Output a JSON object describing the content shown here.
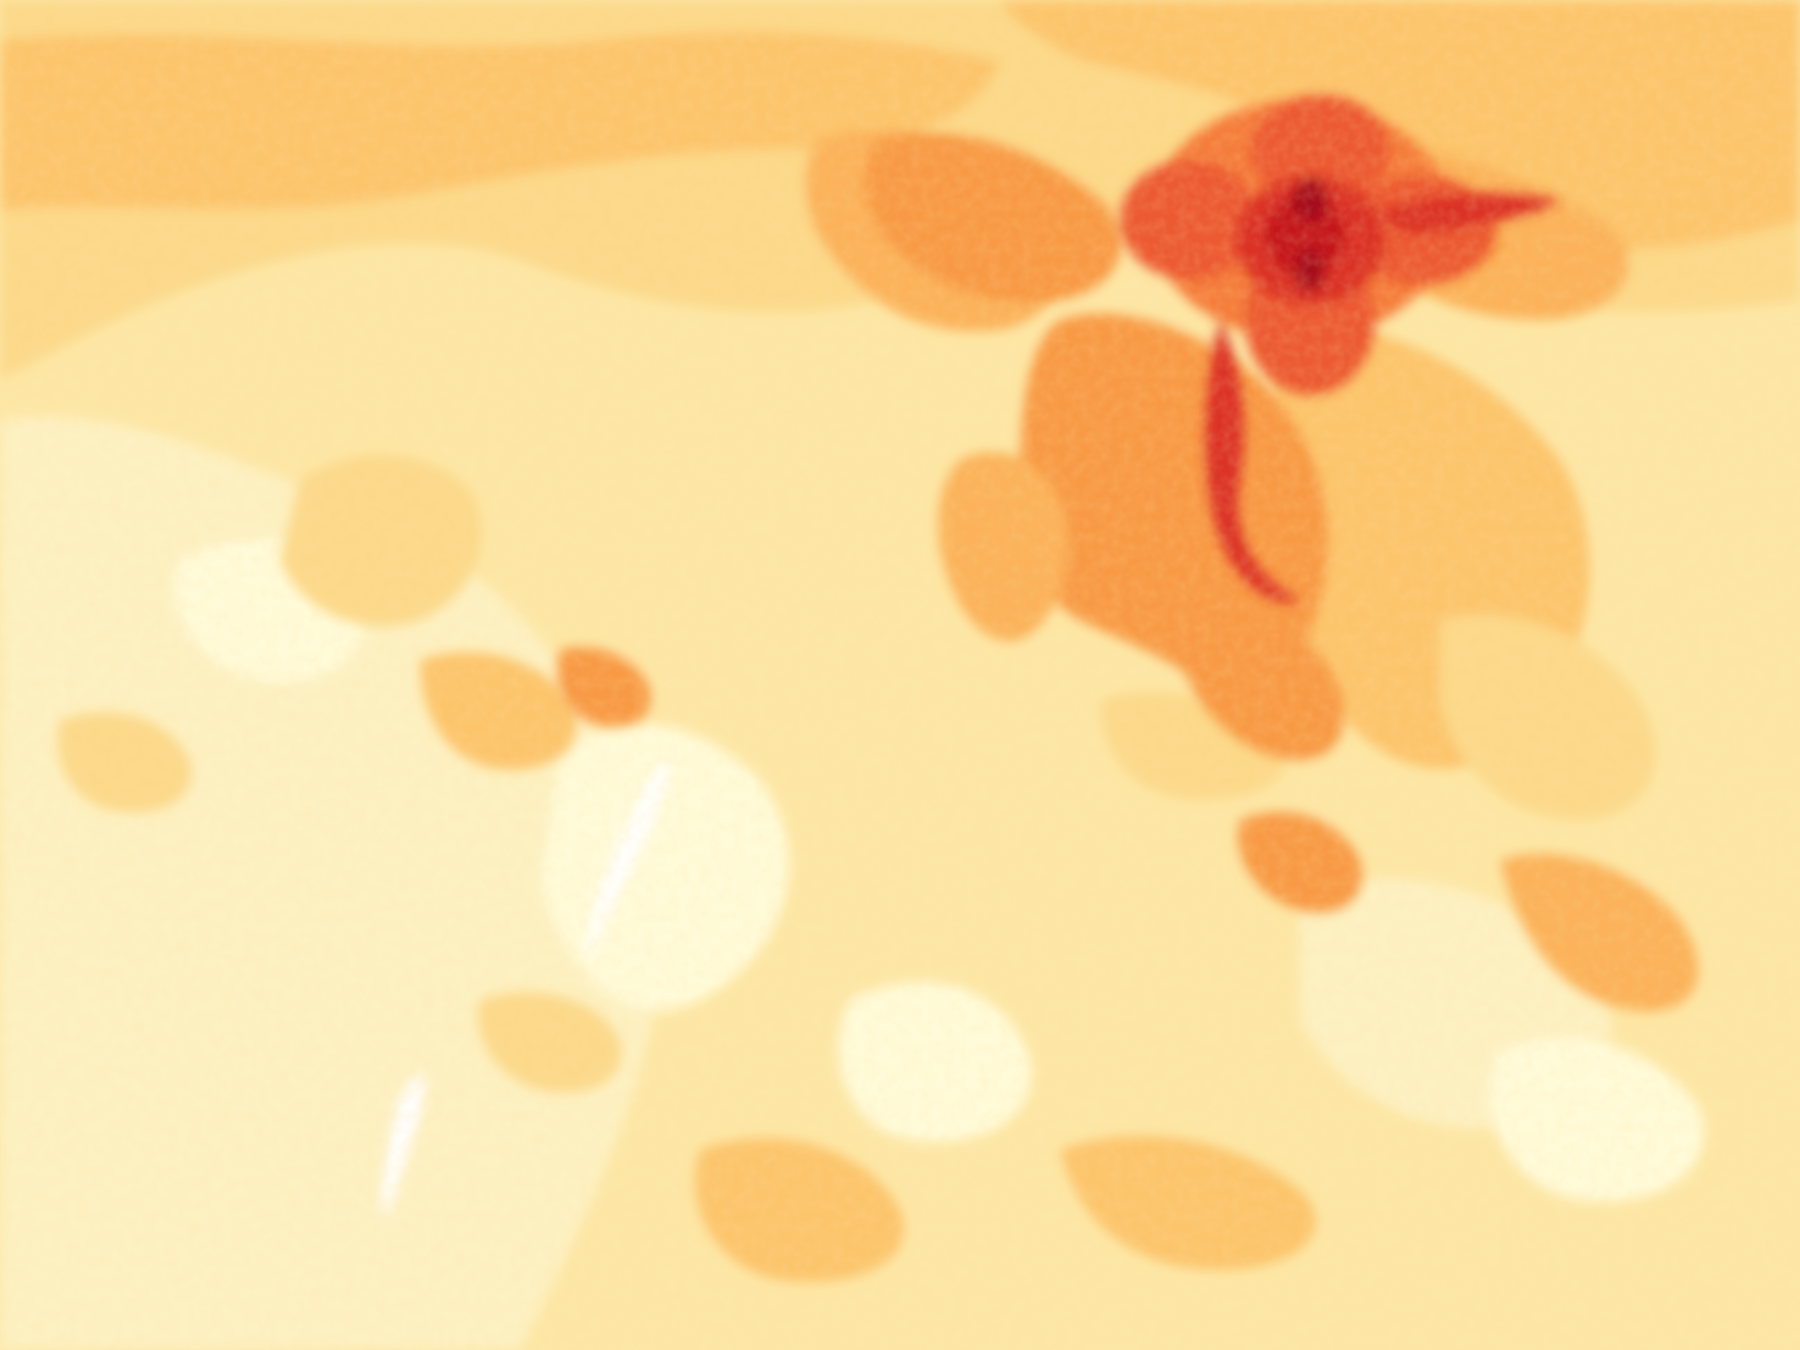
{
  "map": {
    "kind": "raster-heatmap",
    "color_ramp": [
      "#fffbd9",
      "#fdf1c2",
      "#fde7a6",
      "#fcd98a",
      "#fcc56c",
      "#fbb25a",
      "#f89a45",
      "#f57d3a",
      "#ec5a31",
      "#db3328",
      "#c4161f",
      "#a50c1f"
    ],
    "background_color": "#fdf1c2",
    "hotspot_color": "#a50c1f"
  }
}
